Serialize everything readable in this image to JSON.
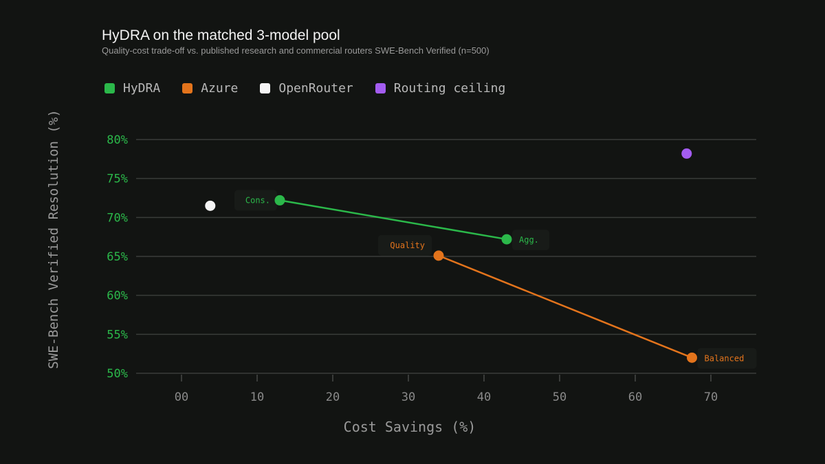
{
  "chart_data": {
    "type": "scatter",
    "title": "HyDRA on the matched 3-model pool",
    "subtitle": "Quality-cost trade-off vs. published research and commercial routers SWE-Bench Verified (n=500)",
    "xlabel": "Cost Savings (%)",
    "ylabel": "SWE-Bench Verified Resolution (%)",
    "xlim": [
      -6,
      76
    ],
    "ylim": [
      50,
      80
    ],
    "x_ticks": [
      0,
      10,
      20,
      30,
      40,
      50,
      60,
      70
    ],
    "x_tick_labels": [
      "00",
      "10",
      "20",
      "30",
      "40",
      "50",
      "60",
      "70"
    ],
    "y_ticks": [
      50,
      55,
      60,
      65,
      70,
      75,
      80
    ],
    "y_tick_labels": [
      "50%",
      "55%",
      "60%",
      "65%",
      "70%",
      "75%",
      "80%"
    ],
    "grid": "horizontal",
    "legend_position": "top-left",
    "series": [
      {
        "name": "HyDRA",
        "color": "#2bb84a",
        "connected": true,
        "points": [
          {
            "x": 13,
            "y": 72.2,
            "label": "Cons.",
            "label_side": "left"
          },
          {
            "x": 43,
            "y": 67.2,
            "label": "Agg.",
            "label_side": "right"
          }
        ]
      },
      {
        "name": "Azure",
        "color": "#e3741c",
        "connected": true,
        "points": [
          {
            "x": 34,
            "y": 65.1,
            "label": "Quality",
            "label_side": "above-left"
          },
          {
            "x": 67.5,
            "y": 52,
            "label": "Balanced",
            "label_side": "right"
          }
        ]
      },
      {
        "name": "OpenRouter",
        "color": "#f5f5f5",
        "connected": false,
        "points": [
          {
            "x": 3.8,
            "y": 71.5,
            "label": ""
          }
        ]
      },
      {
        "name": "Routing ceiling",
        "color": "#a35cf0",
        "connected": false,
        "points": [
          {
            "x": 66.8,
            "y": 78.2,
            "label": ""
          }
        ]
      }
    ]
  },
  "colors": {
    "background": "#121412",
    "grid": "#3a3c3a",
    "y_tick": "#2bb84a",
    "x_tick": "#8a8a8a",
    "axis_label": "#9a9a9a"
  }
}
